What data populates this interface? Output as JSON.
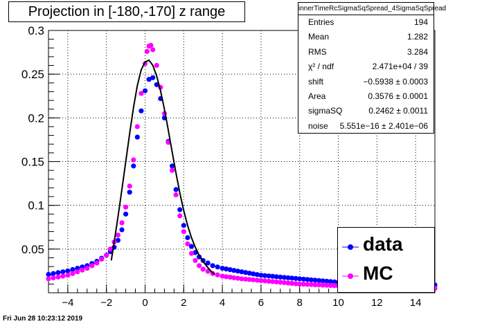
{
  "title": "Projection in [-180,-170] z range",
  "footer_timestamp": "Fri Jun 28 10:23:12 2019",
  "stats": {
    "name": "innerTimeRcSigmaSqSpread_4SigmaSqSpread",
    "rows": [
      {
        "label": "Entries",
        "value": "194"
      },
      {
        "label": "Mean",
        "value": "1.282"
      },
      {
        "label": "RMS",
        "value": "3.284"
      },
      {
        "label": "χ² / ndf",
        "value": "2.471e+04 / 39"
      },
      {
        "label": "shift",
        "value": "−0.5938 ± 0.0003"
      },
      {
        "label": "Area",
        "value": "0.3576 ± 0.0001"
      },
      {
        "label": "sigmaSQ",
        "value": "0.2462 ± 0.0011"
      },
      {
        "label": "noise",
        "value": "5.551e−16 ± 2.401e−06"
      }
    ]
  },
  "legend": [
    {
      "label": "data",
      "color": "#0000ff"
    },
    {
      "label": "MC",
      "color": "#ff00ff"
    }
  ],
  "chart_data": {
    "type": "scatter",
    "title": "Projection in [-180,-170] z range",
    "xlabel": "",
    "ylabel": "",
    "xlim": [
      -5,
      15
    ],
    "ylim": [
      0,
      0.3
    ],
    "x_ticks": [
      -4,
      -2,
      0,
      2,
      4,
      6,
      8,
      10,
      12,
      14
    ],
    "y_ticks": [
      0.05,
      0.1,
      0.15,
      0.2,
      0.25,
      0.3
    ],
    "y_tick_labels": [
      "0.05",
      "0.1",
      "0.15",
      "0.2",
      "0.25",
      "0.3"
    ],
    "grid": true,
    "legend_position": "bottom-right",
    "series": [
      {
        "name": "data",
        "color": "#0000ff",
        "points": [
          [
            -5,
            0.021
          ],
          [
            -4.5,
            0.023
          ],
          [
            -4,
            0.025
          ],
          [
            -3.5,
            0.028
          ],
          [
            -3,
            0.031
          ],
          [
            -2.5,
            0.036
          ],
          [
            -2,
            0.043
          ],
          [
            -1.8,
            0.047
          ],
          [
            -1.6,
            0.052
          ],
          [
            -1.4,
            0.06
          ],
          [
            -1.2,
            0.072
          ],
          [
            -1,
            0.09
          ],
          [
            -0.8,
            0.115
          ],
          [
            -0.6,
            0.145
          ],
          [
            -0.4,
            0.178
          ],
          [
            -0.2,
            0.208
          ],
          [
            0,
            0.231
          ],
          [
            0.2,
            0.244
          ],
          [
            0.4,
            0.246
          ],
          [
            0.6,
            0.238
          ],
          [
            0.8,
            0.222
          ],
          [
            1,
            0.2
          ],
          [
            1.2,
            0.173
          ],
          [
            1.4,
            0.145
          ],
          [
            1.6,
            0.118
          ],
          [
            1.8,
            0.095
          ],
          [
            2,
            0.077
          ],
          [
            2.2,
            0.063
          ],
          [
            2.4,
            0.053
          ],
          [
            2.6,
            0.046
          ],
          [
            2.8,
            0.041
          ],
          [
            3,
            0.037
          ],
          [
            3.5,
            0.031
          ],
          [
            4,
            0.028
          ],
          [
            5,
            0.024
          ],
          [
            6,
            0.02
          ],
          [
            7,
            0.018
          ],
          [
            8,
            0.016
          ],
          [
            9,
            0.014
          ],
          [
            10,
            0.012
          ],
          [
            11,
            0.011
          ],
          [
            12,
            0.01
          ],
          [
            13,
            0.01
          ],
          [
            14,
            0.009
          ],
          [
            15,
            0.009
          ]
        ]
      },
      {
        "name": "MC",
        "color": "#ff00ff",
        "points": [
          [
            -5,
            0.016
          ],
          [
            -4.5,
            0.018
          ],
          [
            -4,
            0.02
          ],
          [
            -3.5,
            0.024
          ],
          [
            -3,
            0.028
          ],
          [
            -2.5,
            0.034
          ],
          [
            -2,
            0.043
          ],
          [
            -1.8,
            0.05
          ],
          [
            -1.6,
            0.058
          ],
          [
            -1.4,
            0.066
          ],
          [
            -1.2,
            0.08
          ],
          [
            -1,
            0.098
          ],
          [
            -0.8,
            0.122
          ],
          [
            -0.6,
            0.152
          ],
          [
            -0.4,
            0.19
          ],
          [
            -0.2,
            0.228
          ],
          [
            0,
            0.262
          ],
          [
            0.1,
            0.276
          ],
          [
            0.2,
            0.282
          ],
          [
            0.3,
            0.283
          ],
          [
            0.4,
            0.278
          ],
          [
            0.6,
            0.26
          ],
          [
            0.8,
            0.235
          ],
          [
            1,
            0.205
          ],
          [
            1.2,
            0.172
          ],
          [
            1.4,
            0.14
          ],
          [
            1.6,
            0.112
          ],
          [
            1.8,
            0.088
          ],
          [
            2,
            0.07
          ],
          [
            2.2,
            0.056
          ],
          [
            2.4,
            0.045
          ],
          [
            2.6,
            0.037
          ],
          [
            2.8,
            0.031
          ],
          [
            3,
            0.027
          ],
          [
            3.5,
            0.022
          ],
          [
            4,
            0.019
          ],
          [
            5,
            0.016
          ],
          [
            6,
            0.014
          ],
          [
            7,
            0.012
          ],
          [
            8,
            0.01
          ],
          [
            9,
            0.009
          ],
          [
            10,
            0.008
          ],
          [
            11,
            0.007
          ],
          [
            12,
            0.006
          ],
          [
            13,
            0.006
          ],
          [
            14,
            0.005
          ],
          [
            15,
            0.005
          ]
        ]
      },
      {
        "name": "fit",
        "color": "#000000",
        "line": true,
        "points": [
          [
            -1.75,
            0.037
          ],
          [
            -1.6,
            0.058
          ],
          [
            -1.4,
            0.087
          ],
          [
            -1.2,
            0.118
          ],
          [
            -1,
            0.15
          ],
          [
            -0.8,
            0.182
          ],
          [
            -0.6,
            0.212
          ],
          [
            -0.4,
            0.237
          ],
          [
            -0.2,
            0.255
          ],
          [
            0,
            0.264
          ],
          [
            0.2,
            0.266
          ],
          [
            0.4,
            0.26
          ],
          [
            0.6,
            0.248
          ],
          [
            0.8,
            0.231
          ],
          [
            1,
            0.21
          ],
          [
            1.2,
            0.186
          ],
          [
            1.4,
            0.161
          ],
          [
            1.6,
            0.137
          ],
          [
            1.8,
            0.114
          ],
          [
            2,
            0.094
          ],
          [
            2.2,
            0.077
          ],
          [
            2.4,
            0.063
          ],
          [
            2.6,
            0.052
          ],
          [
            2.8,
            0.043
          ],
          [
            3,
            0.036
          ],
          [
            3.2,
            0.03
          ],
          [
            3.4,
            0.025
          ],
          [
            3.6,
            0.021
          ]
        ]
      }
    ]
  }
}
